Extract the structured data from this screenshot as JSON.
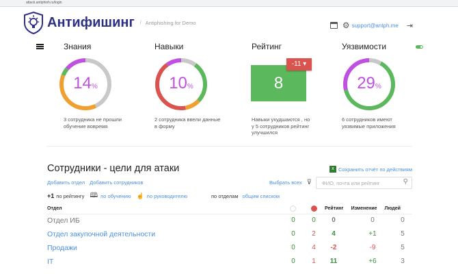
{
  "browser": {
    "url": "attack.antiphish.ru/login"
  },
  "header": {
    "brand": "Антифишинг",
    "separator": "/",
    "subtitle": "Antiphishing for Demo",
    "email": "support@antph.me",
    "icons": [
      "calendar-icon",
      "gear-icon",
      "logout-icon"
    ]
  },
  "colors": {
    "brand": "#2d2f85",
    "green": "#5cb85c",
    "red": "#d9534f",
    "orange": "#f0a030",
    "purple": "#c050e0",
    "gray": "#c8c8c8",
    "link": "#4a90e2"
  },
  "widgets": {
    "knowledge": {
      "title": "Знания",
      "value": "14",
      "unit": "%",
      "caption": "3 сотрудника не прошли обучение вовремя",
      "segments": [
        {
          "color": "#c8c8c8",
          "fraction": 0.43
        },
        {
          "color": "#f0a030",
          "fraction": 0.38
        },
        {
          "color": "#5cb85c",
          "fraction": 0.05
        },
        {
          "color": "#c050e0",
          "fraction": 0.14
        }
      ]
    },
    "skills": {
      "title": "Навыки",
      "value": "10",
      "unit": "%",
      "caption": "2 сотрудника ввели данные в форму",
      "segments": [
        {
          "color": "#c8c8c8",
          "fraction": 0.1
        },
        {
          "color": "#5cb85c",
          "fraction": 0.27
        },
        {
          "color": "#f0a030",
          "fraction": 0.1
        },
        {
          "color": "#d9534f",
          "fraction": 0.43
        },
        {
          "color": "#c050e0",
          "fraction": 0.1
        }
      ]
    },
    "rating": {
      "title": "Рейтинг",
      "value": "8",
      "delta": "-11 ▾",
      "caption": "Навыки ухудшаются , но у 5 сотрудников рейтинг улучшился"
    },
    "vulns": {
      "title": "Уязвимости",
      "value": "29",
      "unit": "%",
      "caption": "6 сотрудников имеют уязвимые приложения",
      "toggle_on": true,
      "segments": [
        {
          "color": "#c8c8c8",
          "fraction": 0.08
        },
        {
          "color": "#5cb85c",
          "fraction": 0.63
        },
        {
          "color": "#c050e0",
          "fraction": 0.29
        }
      ]
    }
  },
  "section": {
    "title": "Сотрудники - цели для атаки",
    "save_report": "Сохранить отчёт по действиям",
    "add_dept": "Добавить отдел",
    "add_employees": "Добавить сотрудников",
    "select_all": "Выбрать всех",
    "search_placeholder": "ФИО, почта или рейтинг",
    "sort": {
      "plus": "+1",
      "by_rating": "по рейтингу",
      "by_training": "по обучению",
      "by_manager": "по руководителю",
      "by_dept": "по отделам",
      "flat_list": "общим списком"
    }
  },
  "table": {
    "columns": [
      "Отдел",
      "",
      "",
      "Рейтинг",
      "Изменение",
      "Людей"
    ],
    "rows": [
      {
        "name": "Отдел ИБ",
        "link": false,
        "c1": "0",
        "c2": "0",
        "rating": "0",
        "change": "0",
        "people": "0"
      },
      {
        "name": "Отдел закупочной деятельности",
        "link": true,
        "c1": "0",
        "c2": "2",
        "rating": "4",
        "change": "+1",
        "people": "5"
      },
      {
        "name": "Продажи",
        "link": true,
        "c1": "0",
        "c2": "4",
        "rating": "-2",
        "change": "-9",
        "people": "5"
      },
      {
        "name": "IT",
        "link": true,
        "c1": "0",
        "c2": "1",
        "rating": "11",
        "change": "+6",
        "people": "3"
      }
    ]
  }
}
